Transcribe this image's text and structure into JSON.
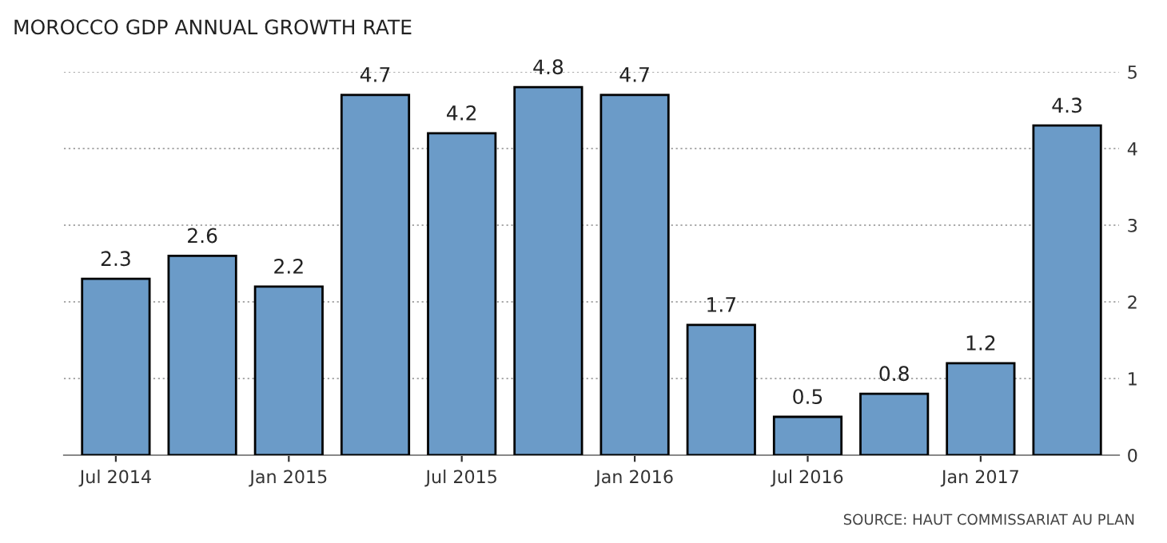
{
  "chart_data": {
    "type": "bar",
    "title": "MOROCCO GDP ANNUAL GROWTH RATE",
    "categories": [
      "Jul 2014",
      null,
      "Jan 2015",
      null,
      "Jul 2015",
      null,
      "Jan 2016",
      null,
      "Jul 2016",
      null,
      "Jan 2017",
      null
    ],
    "values": [
      2.3,
      2.6,
      2.2,
      4.7,
      4.2,
      4.8,
      4.7,
      1.7,
      0.5,
      0.8,
      1.2,
      4.3
    ],
    "color": "#6b9bc8",
    "ylim": [
      0,
      5
    ],
    "yticks": [
      0,
      1,
      2,
      3,
      4,
      5
    ],
    "grid": "y",
    "data_labels": true,
    "annotations": [
      "SOURCE: HAUT COMMISSARIAT AU PLAN"
    ]
  }
}
